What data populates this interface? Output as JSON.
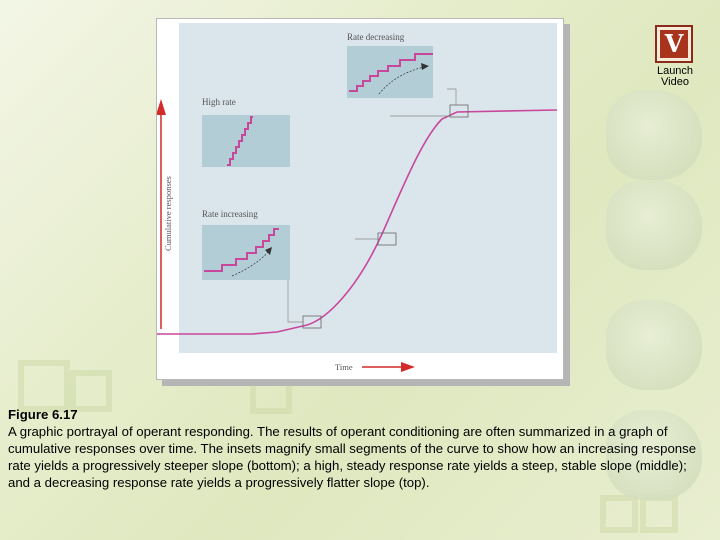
{
  "figure": {
    "insets": {
      "rate_decreasing": "Rate decreasing",
      "high_rate": "High rate",
      "rate_increasing": "Rate increasing"
    },
    "y_axis_label": "Cumulative responses",
    "x_axis_label": "Time",
    "colors": {
      "curve": "#c8479b",
      "arrow": "#d32a2a",
      "panel": "#dbe6ec",
      "inset": "#b3cdd6"
    }
  },
  "launch_video": {
    "icon": "video-v-icon",
    "glyph": "V",
    "label": "Launch\nVideo"
  },
  "caption": {
    "title": "Figure 6.17",
    "body": "A graphic portrayal of operant responding. The results of operant conditioning are often summarized in a graph of cumulative responses over time. The insets magnify small segments of the curve to show how an increasing response rate yields a progressively steeper slope (bottom); a high, steady response rate yields a steep, stable slope (middle); and a decreasing response rate yields a progressively flatter slope (top)."
  }
}
